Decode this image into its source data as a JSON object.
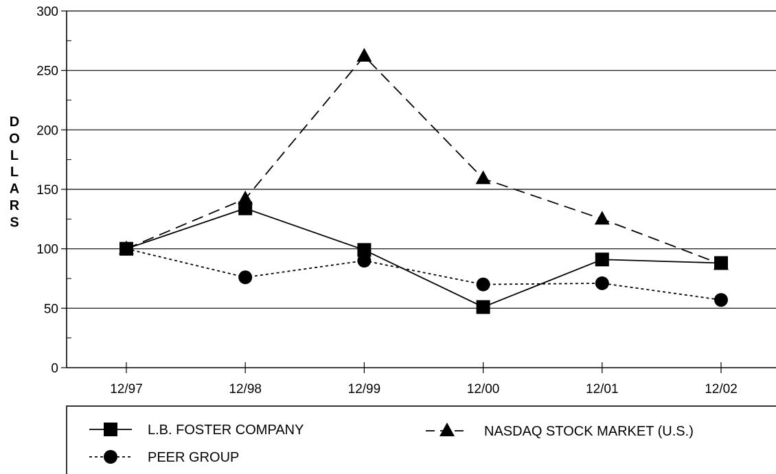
{
  "chart_data": {
    "type": "line",
    "title": "",
    "xlabel": "",
    "ylabel": "DOLLARS",
    "categories": [
      "12/97",
      "12/98",
      "12/99",
      "12/00",
      "12/01",
      "12/02"
    ],
    "ylim": [
      0,
      300
    ],
    "yticks": [
      0,
      50,
      100,
      150,
      200,
      250,
      300
    ],
    "grid": "horizontal",
    "legend_position": "bottom",
    "series": [
      {
        "name": "L.B. FOSTER COMPANY",
        "values": [
          100,
          134,
          99,
          51,
          91,
          88
        ],
        "marker": "square",
        "line_style": "solid",
        "color": "#000000"
      },
      {
        "name": "NASDAQ STOCK MARKET (U.S.)",
        "values": [
          100,
          142,
          262,
          159,
          125,
          87
        ],
        "marker": "triangle",
        "line_style": "long-dash",
        "color": "#000000"
      },
      {
        "name": "PEER GROUP",
        "values": [
          100,
          76,
          90,
          70,
          71,
          57
        ],
        "marker": "circle",
        "line_style": "dotted",
        "color": "#000000"
      }
    ]
  }
}
